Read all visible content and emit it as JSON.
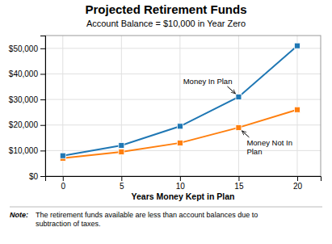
{
  "chart_data": {
    "type": "line",
    "title": "Projected Retirement Funds",
    "subtitle": "Account Balance = $10,000 in Year Zero",
    "x_label": "Years Money Kept in Plan",
    "x": [
      0,
      5,
      10,
      15,
      20
    ],
    "series": [
      {
        "values": [
          8000,
          12000,
          19500,
          31000,
          51000
        ],
        "marker": "square"
      },
      {
        "values": [
          7000,
          9500,
          13000,
          19000,
          26000
        ],
        "marker": "square"
      }
    ],
    "xlim": [
      -1.5,
      22
    ],
    "xticks": [
      0,
      5,
      10,
      15,
      20
    ],
    "ylim": [
      0,
      55000
    ],
    "yticks": [
      {
        "value": 0,
        "label": "$0"
      },
      {
        "value": 10000,
        "label": "$10,000"
      },
      {
        "value": 20000,
        "label": "$20,000"
      },
      {
        "value": 30000,
        "label": "$30,000"
      },
      {
        "value": 40000,
        "label": "$40,000"
      },
      {
        "value": 50000,
        "label": "$50,000"
      }
    ],
    "grid": true,
    "annotations": [
      {
        "text": "Money In Plan",
        "x": 15,
        "y": 31000
      },
      {
        "text": "Money Not In\nPlan",
        "x": 15,
        "y": 19000
      }
    ],
    "note_label": "Note:",
    "note_text": "The retirement funds available are less than account balances due to\nsubtraction of taxes."
  }
}
